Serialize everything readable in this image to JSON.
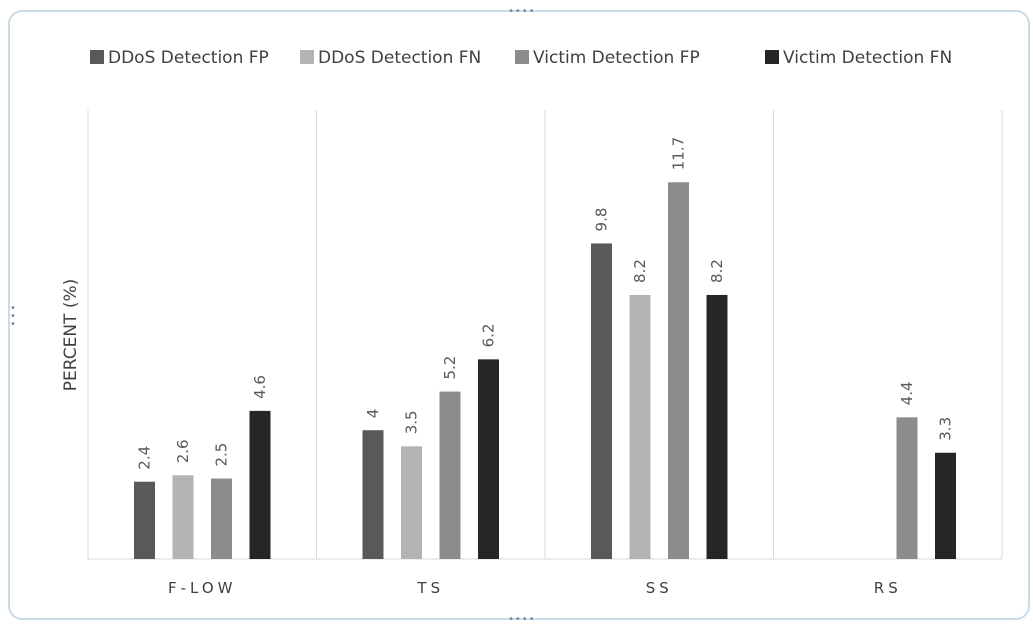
{
  "chart_data": {
    "type": "bar",
    "title": "",
    "xlabel": "",
    "ylabel": "PERCENT (%)",
    "categories": [
      "F-LOW",
      "TS",
      "SS",
      "RS"
    ],
    "series": [
      {
        "name": "DDoS Detection FP",
        "color": "#595959",
        "values": [
          2.4,
          4,
          9.8,
          null
        ]
      },
      {
        "name": "DDoS Detection FN",
        "color": "#b3b3b3",
        "values": [
          2.6,
          3.5,
          8.2,
          null
        ]
      },
      {
        "name": "Victim Detection FP",
        "color": "#8c8c8c",
        "values": [
          2.5,
          5.2,
          11.7,
          4.4
        ]
      },
      {
        "name": "Victim Detection FN",
        "color": "#262626",
        "values": [
          4.6,
          6.2,
          8.2,
          3.3
        ]
      }
    ],
    "ylim": [
      0,
      14
    ],
    "grid": false,
    "legend": "top"
  },
  "colors": {
    "frame_border": "#c9dbe6",
    "divider": "#d9d9d9"
  }
}
